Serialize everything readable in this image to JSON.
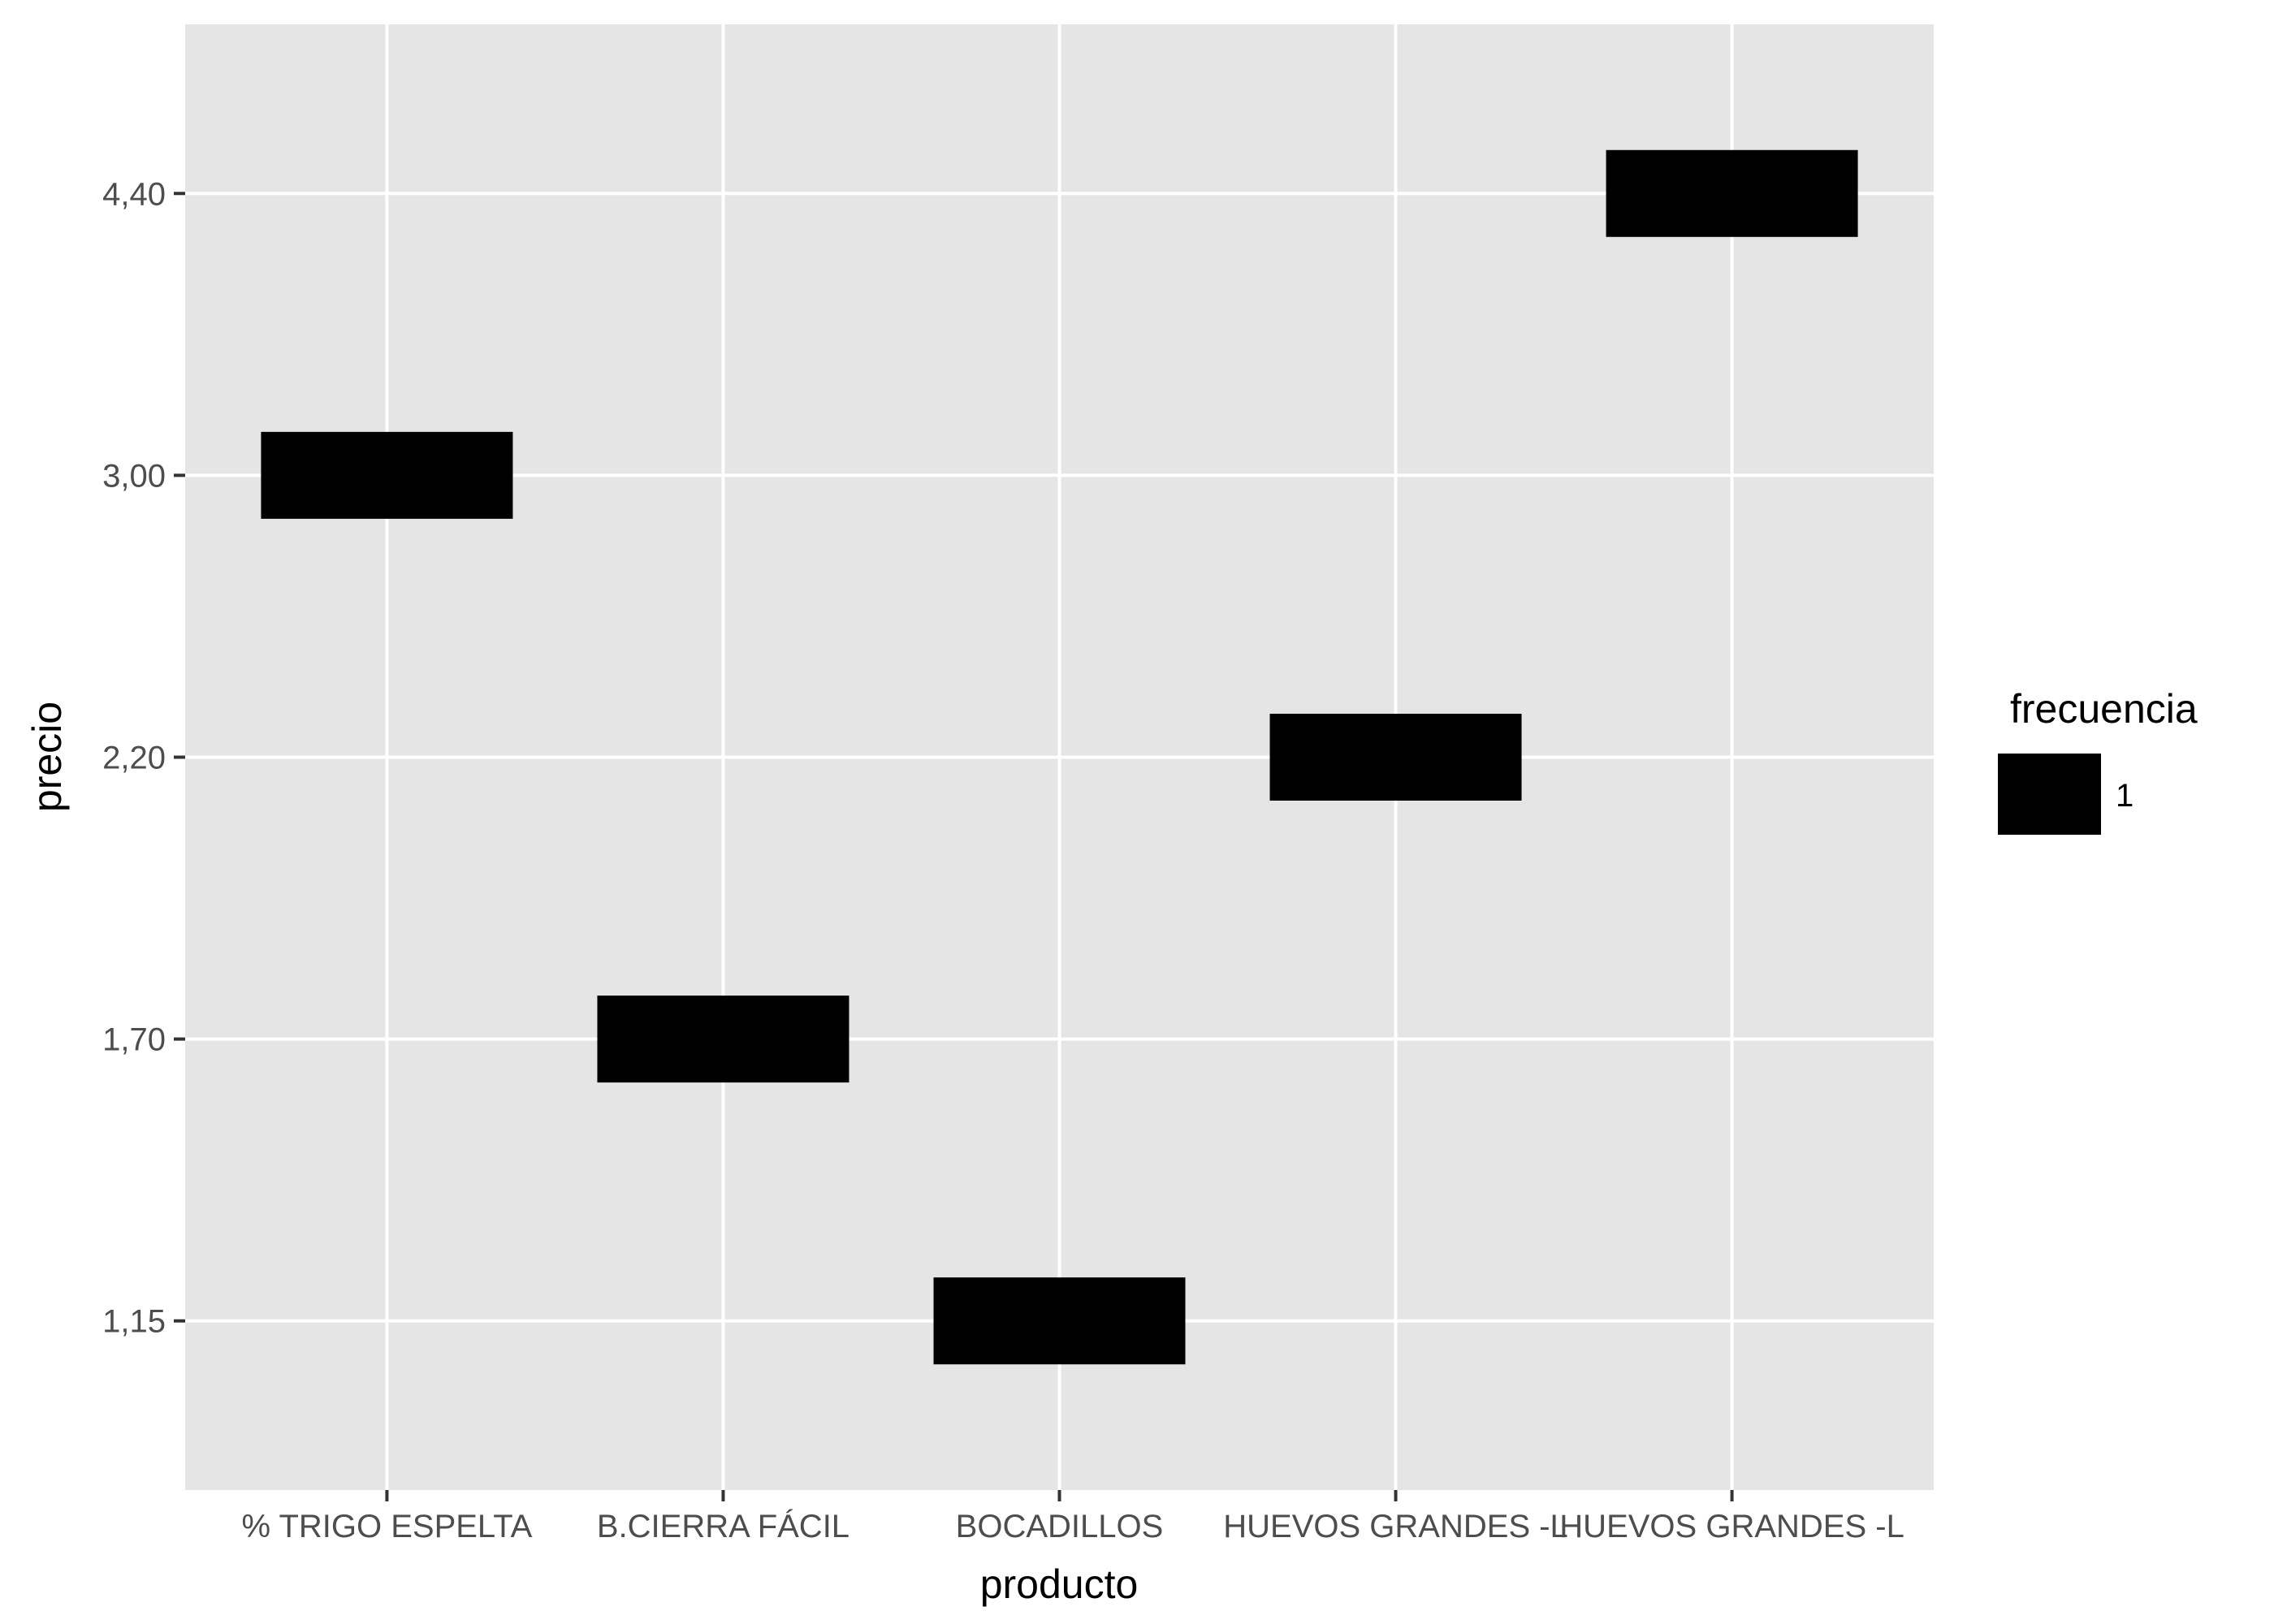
{
  "chart_data": {
    "type": "tile",
    "categories": [
      "% TRIGO ESPELTA",
      "B.CIERRA FÁCIL",
      "BOCADILLOS",
      "HUEVOS GRANDES -L",
      "HUEVOS GRANDES -L"
    ],
    "y_levels": [
      "1,15",
      "1,70",
      "2,20",
      "3,00",
      "4,40"
    ],
    "points": [
      {
        "x": "% TRIGO ESPELTA",
        "y": "3,00",
        "frecuencia": 1
      },
      {
        "x": "B.CIERRA FÁCIL",
        "y": "1,70",
        "frecuencia": 1
      },
      {
        "x": "BOCADILLOS",
        "y": "1,15",
        "frecuencia": 1
      },
      {
        "x": "HUEVOS GRANDES -L",
        "y": "2,20",
        "frecuencia": 1
      },
      {
        "x": "HUEVOS GRANDES -L",
        "y": "4,40",
        "frecuencia": 1
      }
    ],
    "xlabel": "producto",
    "ylabel": "precio",
    "legend": {
      "title": "frecuencia",
      "labels": [
        "1"
      ],
      "placement": "right"
    },
    "grid": true,
    "colors": {
      "panel": "#e5e5e5",
      "grid": "#ffffff",
      "tile": "#000000"
    }
  }
}
